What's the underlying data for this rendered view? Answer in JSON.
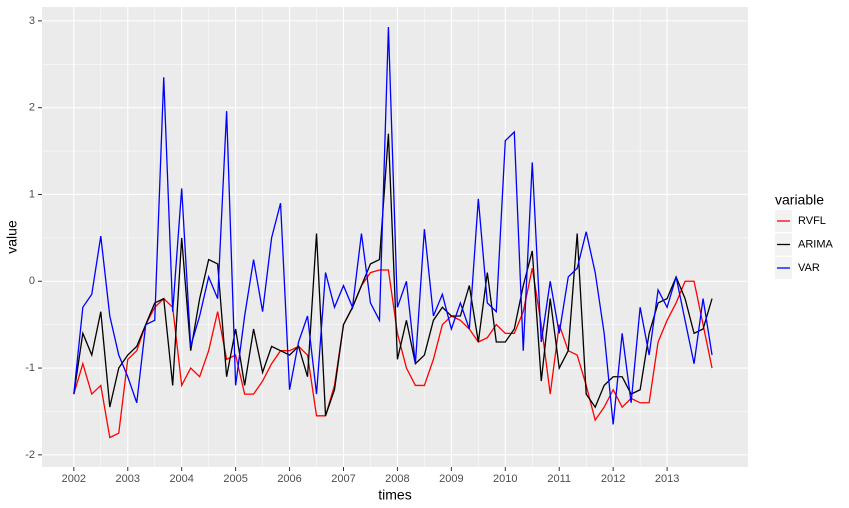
{
  "chart_data": {
    "type": "line",
    "x_label": "times",
    "y_label": "value",
    "legend_title": "variable",
    "x": [
      2002,
      2002.167,
      2002.333,
      2002.5,
      2002.667,
      2002.833,
      2003,
      2003.167,
      2003.333,
      2003.5,
      2003.667,
      2003.833,
      2004,
      2004.167,
      2004.333,
      2004.5,
      2004.667,
      2004.833,
      2005,
      2005.167,
      2005.333,
      2005.5,
      2005.667,
      2005.833,
      2006,
      2006.167,
      2006.333,
      2006.5,
      2006.667,
      2006.833,
      2007,
      2007.167,
      2007.333,
      2007.5,
      2007.667,
      2007.833,
      2008,
      2008.167,
      2008.333,
      2008.5,
      2008.667,
      2008.833,
      2009,
      2009.167,
      2009.333,
      2009.5,
      2009.667,
      2009.833,
      2010,
      2010.167,
      2010.333,
      2010.5,
      2010.667,
      2010.833,
      2011,
      2011.167,
      2011.333,
      2011.5,
      2011.667,
      2011.833,
      2012,
      2012.167,
      2012.333,
      2012.5,
      2012.667,
      2012.833,
      2013,
      2013.167,
      2013.333,
      2013.5,
      2013.667,
      2013.833
    ],
    "series": [
      {
        "name": "RVFL",
        "color": "#ff0000",
        "values": [
          -1.3,
          -0.95,
          -1.3,
          -1.2,
          -1.8,
          -1.75,
          -0.9,
          -0.8,
          -0.5,
          -0.3,
          -0.2,
          -0.3,
          -1.2,
          -1.0,
          -1.1,
          -0.8,
          -0.35,
          -0.9,
          -0.85,
          -1.3,
          -1.3,
          -1.15,
          -0.95,
          -0.8,
          -0.8,
          -0.75,
          -0.85,
          -1.55,
          -1.55,
          -1.2,
          -0.5,
          -0.3,
          -0.05,
          0.1,
          0.13,
          0.13,
          -0.6,
          -1.0,
          -1.2,
          -1.2,
          -0.9,
          -0.5,
          -0.4,
          -0.45,
          -0.55,
          -0.7,
          -0.65,
          -0.5,
          -0.6,
          -0.6,
          -0.35,
          0.15,
          -0.5,
          -1.3,
          -0.5,
          -0.8,
          -0.85,
          -1.2,
          -1.6,
          -1.45,
          -1.25,
          -1.45,
          -1.35,
          -1.4,
          -1.4,
          -0.7,
          -0.45,
          -0.25,
          0.0,
          0.0,
          -0.5,
          -1.0
        ]
      },
      {
        "name": "ARIMA",
        "color": "#000000",
        "values": [
          -1.3,
          -0.6,
          -0.85,
          -0.35,
          -1.45,
          -1.0,
          -0.85,
          -0.75,
          -0.5,
          -0.25,
          -0.2,
          -1.2,
          0.5,
          -0.8,
          -0.2,
          0.25,
          0.2,
          -1.1,
          -0.55,
          -1.2,
          -0.55,
          -1.05,
          -0.75,
          -0.8,
          -0.85,
          -0.75,
          -1.1,
          0.55,
          -1.55,
          -1.25,
          -0.5,
          -0.3,
          -0.05,
          0.2,
          0.25,
          1.7,
          -0.9,
          -0.45,
          -0.95,
          -0.85,
          -0.45,
          -0.3,
          -0.4,
          -0.4,
          -0.05,
          -0.7,
          0.1,
          -0.7,
          -0.7,
          -0.55,
          -0.05,
          0.35,
          -1.15,
          -0.2,
          -1.0,
          -0.8,
          0.55,
          -1.3,
          -1.45,
          -1.2,
          -1.1,
          -1.1,
          -1.3,
          -1.25,
          -0.6,
          -0.25,
          -0.2,
          0.05,
          -0.2,
          -0.6,
          -0.55,
          -0.2
        ]
      },
      {
        "name": "VAR",
        "color": "#0000ff",
        "values": [
          -1.3,
          -0.3,
          -0.15,
          0.52,
          -0.4,
          -0.85,
          -1.1,
          -1.4,
          -0.5,
          -0.45,
          2.35,
          -0.35,
          1.07,
          -0.75,
          -0.4,
          0.05,
          -0.2,
          1.96,
          -1.2,
          -0.4,
          0.25,
          -0.35,
          0.5,
          0.9,
          -1.25,
          -0.7,
          -0.4,
          -1.3,
          0.1,
          -0.3,
          -0.05,
          -0.3,
          0.55,
          -0.25,
          -0.45,
          2.93,
          -0.3,
          0.0,
          -0.95,
          0.6,
          -0.4,
          -0.15,
          -0.55,
          -0.25,
          -0.55,
          0.95,
          -0.25,
          -0.35,
          1.62,
          1.72,
          -0.8,
          1.37,
          -0.7,
          0.0,
          -0.6,
          0.05,
          0.15,
          0.57,
          0.1,
          -0.6,
          -1.65,
          -0.6,
          -1.4,
          -0.3,
          -0.85,
          -0.1,
          -0.3,
          0.05,
          -0.45,
          -0.95,
          -0.2,
          -0.85
        ]
      }
    ],
    "xlim": [
      2001.41,
      2014.5
    ],
    "xticks": [
      2002,
      2003,
      2004,
      2005,
      2006,
      2007,
      2008,
      2009,
      2010,
      2011,
      2012,
      2013
    ],
    "ylim": [
      -2.14,
      3.16
    ],
    "yticks": [
      -2,
      -1,
      0,
      1,
      2,
      3
    ],
    "grid": true
  }
}
